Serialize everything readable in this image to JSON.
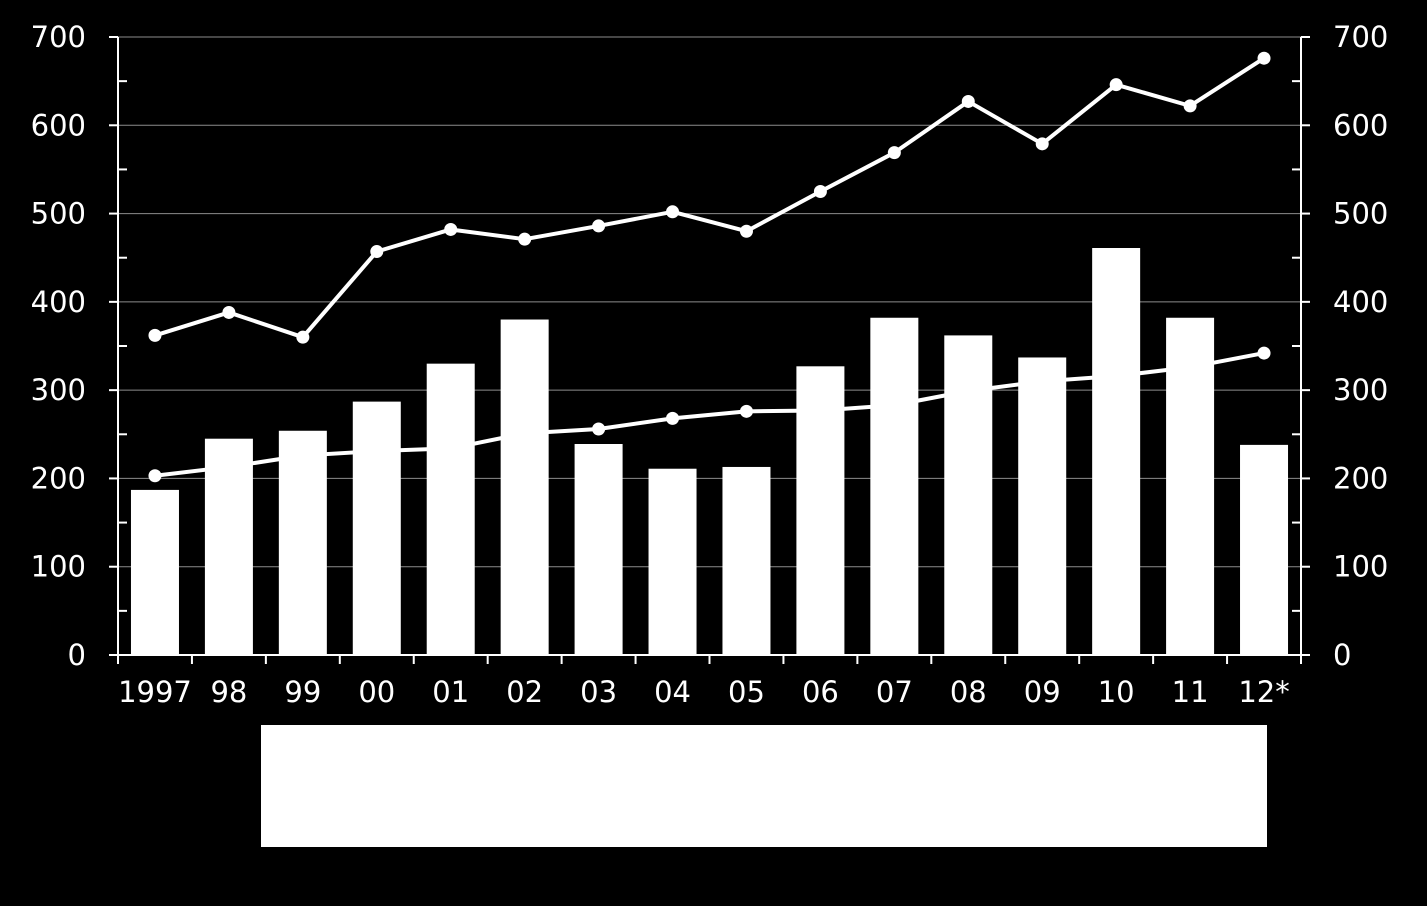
{
  "colors": {
    "background": "#000000",
    "foreground": "#ffffff",
    "gridline": "#8c8c8c"
  },
  "chart_data": {
    "type": "bar",
    "categories": [
      "1997",
      "98",
      "99",
      "00",
      "01",
      "02",
      "03",
      "04",
      "05",
      "06",
      "07",
      "08",
      "09",
      "10",
      "11",
      "12*"
    ],
    "ylim": [
      0,
      700
    ],
    "yticks": [
      "0",
      "100",
      "200",
      "300",
      "400",
      "500",
      "600",
      "700"
    ],
    "y2ticks": [
      "0",
      "100",
      "200",
      "300",
      "400",
      "500",
      "600",
      "700"
    ],
    "grid": true,
    "series": [
      {
        "type": "bar",
        "values": [
          187,
          245,
          254,
          287,
          330,
          380,
          239,
          211,
          213,
          327,
          382,
          362,
          337,
          461,
          382,
          238
        ]
      },
      {
        "type": "line",
        "markers": true,
        "values": [
          362,
          388,
          360,
          457,
          482,
          471,
          486,
          502,
          480,
          525,
          569,
          627,
          579,
          646,
          622,
          676
        ]
      },
      {
        "type": "line",
        "markers": true,
        "values": [
          203,
          213,
          226,
          231,
          234,
          251,
          256,
          268,
          276,
          277,
          283,
          299,
          310,
          316,
          326,
          342
        ]
      }
    ],
    "legend": {
      "placement": "bottom",
      "entries": []
    }
  }
}
